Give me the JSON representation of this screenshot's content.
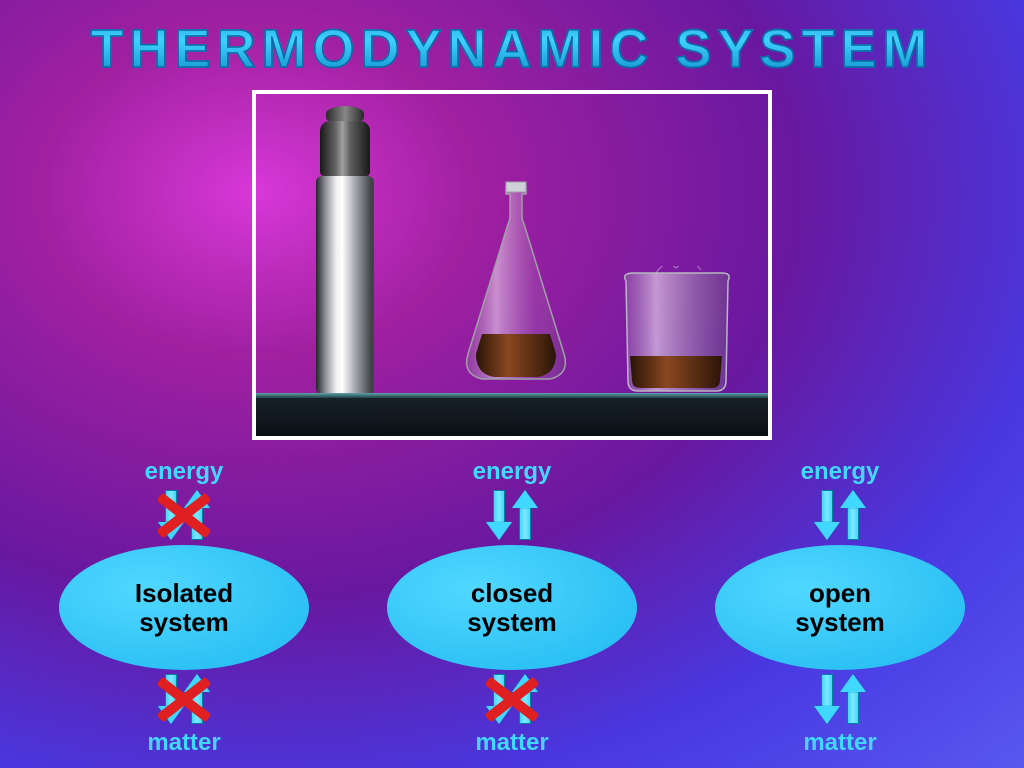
{
  "title": "THERMODYNAMIC  SYSTEM",
  "labels": {
    "energy": "energy",
    "matter": "matter"
  },
  "systems": [
    {
      "name": "Isolated\nsystem",
      "energy_blocked": true,
      "matter_blocked": true
    },
    {
      "name": "closed\nsystem",
      "energy_blocked": false,
      "matter_blocked": true
    },
    {
      "name": "open\nsystem",
      "energy_blocked": false,
      "matter_blocked": false
    }
  ],
  "styling": {
    "title_color_top": "#0a8ac8",
    "title_color_mid": "#40d0ff",
    "title_stroke": "#0868a0",
    "title_fontsize": 54,
    "title_letterspacing": 6,
    "background_gradient": [
      "#d838d8",
      "#a020a0",
      "#6818a0",
      "#4838e0",
      "#5858f0"
    ],
    "ellipse_fill": [
      "#50d8ff",
      "#20b8f0"
    ],
    "ellipse_width": 250,
    "ellipse_height": 125,
    "ellipse_text_color": "#000000",
    "ellipse_fontsize": 26,
    "label_color": "#40d8ff",
    "label_fontsize": 24,
    "arrow_fill": "#40d8ff",
    "arrow_stroke": "#0080a0",
    "cross_color": "#e02020",
    "cross_stroke_width": 10,
    "photo_border_color": "#ffffff",
    "liquid_color": "#5a2810",
    "glass_highlight": "#e8e8f0"
  }
}
